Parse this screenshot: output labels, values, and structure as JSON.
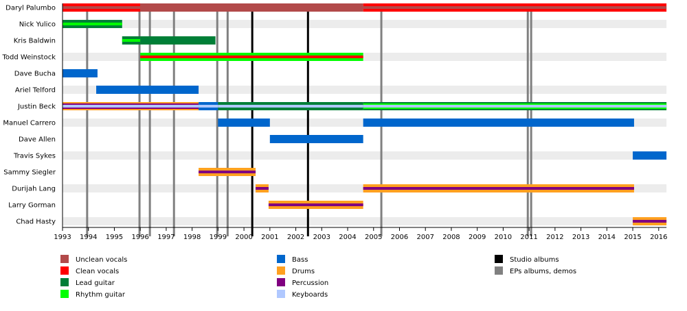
{
  "chart_data": {
    "type": "timeline",
    "xlim": [
      1993,
      2016.3
    ],
    "x_ticks": [
      1993,
      1994,
      1995,
      1996,
      1997,
      1998,
      1999,
      2000,
      2001,
      2002,
      2003,
      2004,
      2005,
      2006,
      2007,
      2008,
      2009,
      2010,
      2011,
      2012,
      2013,
      2014,
      2015,
      2016
    ],
    "grid": false,
    "legend_placement": "bottom",
    "roles": {
      "unclean": {
        "label": "Unclean vocals",
        "color": "#b24a4a"
      },
      "clean": {
        "label": "Clean vocals",
        "color": "#ff0000"
      },
      "lead": {
        "label": "Lead guitar",
        "color": "#007f37"
      },
      "rhythm": {
        "label": "Rhythm guitar",
        "color": "#00ff00"
      },
      "bass": {
        "label": "Bass",
        "color": "#0066cc"
      },
      "drums": {
        "label": "Drums",
        "color": "#ffa020"
      },
      "perc": {
        "label": "Percussion",
        "color": "#800080"
      },
      "keys": {
        "label": "Keyboards",
        "color": "#b0c8ff"
      },
      "studio": {
        "label": "Studio albums",
        "color": "#000000"
      },
      "eps": {
        "label": "EPs albums, demos",
        "color": "#808080"
      }
    },
    "legend_columns": [
      [
        "unclean",
        "clean",
        "lead",
        "rhythm"
      ],
      [
        "bass",
        "drums",
        "perc",
        "keys"
      ],
      [
        "studio",
        "eps"
      ]
    ],
    "members": [
      {
        "name": "Daryl Palumbo",
        "segments": [
          {
            "start": 1993,
            "end": 1996,
            "layers": [
              "clean",
              "unclean"
            ]
          },
          {
            "start": 1996,
            "end": 2004.6,
            "layers": [
              "unclean"
            ]
          },
          {
            "start": 2004.6,
            "end": 2016.3,
            "layers": [
              "clean",
              "unclean"
            ]
          }
        ]
      },
      {
        "name": "Nick Yulico",
        "segments": [
          {
            "start": 1993,
            "end": 1995.3,
            "layers": [
              "lead",
              "rhythm"
            ]
          }
        ]
      },
      {
        "name": "Kris Baldwin",
        "segments": [
          {
            "start": 1995.3,
            "end": 1996,
            "layers": [
              "lead",
              "rhythm"
            ]
          },
          {
            "start": 1996,
            "end": 1998.9,
            "layers": [
              "lead"
            ]
          }
        ]
      },
      {
        "name": "Todd Weinstock",
        "segments": [
          {
            "start": 1996,
            "end": 2004.6,
            "layers": [
              "rhythm",
              "clean"
            ]
          }
        ]
      },
      {
        "name": "Dave Bucha",
        "segments": [
          {
            "start": 1993,
            "end": 1994.35,
            "layers": [
              "bass"
            ]
          }
        ]
      },
      {
        "name": "Ariel Telford",
        "segments": [
          {
            "start": 1994.3,
            "end": 1998.25,
            "layers": [
              "bass"
            ]
          }
        ]
      },
      {
        "name": "Justin Beck",
        "segments": [
          {
            "start": 1993,
            "end": 1998.25,
            "layers": [
              "drums",
              "perc",
              "keys"
            ]
          },
          {
            "start": 1998.25,
            "end": 1999,
            "layers": [
              "bass",
              "keys"
            ]
          },
          {
            "start": 1999,
            "end": 2004.6,
            "layers": [
              "lead",
              "keys"
            ]
          },
          {
            "start": 2004.6,
            "end": 2016.3,
            "layers": [
              "lead",
              "rhythm",
              "keys"
            ]
          }
        ]
      },
      {
        "name": "Manuel Carrero",
        "segments": [
          {
            "start": 1999,
            "end": 2001,
            "layers": [
              "bass"
            ]
          },
          {
            "start": 2004.6,
            "end": 2015.05,
            "layers": [
              "bass"
            ]
          }
        ]
      },
      {
        "name": "Dave Allen",
        "segments": [
          {
            "start": 2001,
            "end": 2004.6,
            "layers": [
              "bass"
            ]
          }
        ]
      },
      {
        "name": "Travis Sykes",
        "segments": [
          {
            "start": 2015,
            "end": 2016.3,
            "layers": [
              "bass"
            ]
          }
        ]
      },
      {
        "name": "Sammy Siegler",
        "segments": [
          {
            "start": 1998.25,
            "end": 2000.45,
            "layers": [
              "drums",
              "perc"
            ]
          }
        ]
      },
      {
        "name": "Durijah Lang",
        "segments": [
          {
            "start": 2000.45,
            "end": 2000.95,
            "layers": [
              "drums",
              "perc"
            ]
          },
          {
            "start": 2004.6,
            "end": 2015.05,
            "layers": [
              "drums",
              "perc"
            ]
          }
        ]
      },
      {
        "name": "Larry Gorman",
        "segments": [
          {
            "start": 2000.95,
            "end": 2004.6,
            "layers": [
              "drums",
              "perc"
            ]
          }
        ]
      },
      {
        "name": "Chad Hasty",
        "segments": [
          {
            "start": 2015,
            "end": 2016.3,
            "layers": [
              "drums",
              "perc"
            ]
          }
        ]
      }
    ],
    "releases": [
      {
        "date": 1993.95,
        "type": "eps"
      },
      {
        "date": 1995.97,
        "type": "eps"
      },
      {
        "date": 1996.37,
        "type": "eps"
      },
      {
        "date": 1997.3,
        "type": "eps"
      },
      {
        "date": 1998.97,
        "type": "eps"
      },
      {
        "date": 1999.37,
        "type": "eps"
      },
      {
        "date": 2000.32,
        "type": "studio"
      },
      {
        "date": 2002.47,
        "type": "studio"
      },
      {
        "date": 2005.3,
        "type": "eps"
      },
      {
        "date": 2010.95,
        "type": "eps"
      },
      {
        "date": 2011.08,
        "type": "eps"
      }
    ]
  }
}
